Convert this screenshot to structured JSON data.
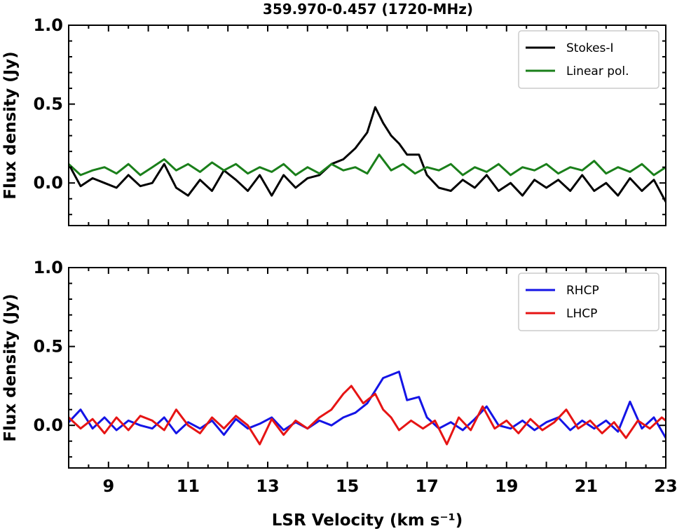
{
  "title": "359.970-0.457 (1720-MHz)",
  "chart_data": [
    {
      "type": "line",
      "ylabel": "Flux density (Jy)",
      "xlim": [
        8,
        23
      ],
      "ylim": [
        -0.27,
        1.0
      ],
      "yticks": [
        0.0,
        0.5,
        1.0
      ],
      "ytick_labels": [
        "0.0",
        "0.5",
        "1.0"
      ],
      "legend_position": "top-right",
      "series": [
        {
          "name": "Stokes-I",
          "color": "#000000",
          "points": [
            [
              8.0,
              0.12
            ],
            [
              8.3,
              -0.02
            ],
            [
              8.6,
              0.03
            ],
            [
              8.9,
              0.0
            ],
            [
              9.2,
              -0.03
            ],
            [
              9.5,
              0.05
            ],
            [
              9.8,
              -0.02
            ],
            [
              10.1,
              0.0
            ],
            [
              10.4,
              0.12
            ],
            [
              10.7,
              -0.03
            ],
            [
              11.0,
              -0.08
            ],
            [
              11.3,
              0.02
            ],
            [
              11.6,
              -0.05
            ],
            [
              11.9,
              0.08
            ],
            [
              12.2,
              0.02
            ],
            [
              12.5,
              -0.05
            ],
            [
              12.8,
              0.05
            ],
            [
              13.1,
              -0.08
            ],
            [
              13.4,
              0.05
            ],
            [
              13.7,
              -0.03
            ],
            [
              14.0,
              0.03
            ],
            [
              14.3,
              0.05
            ],
            [
              14.6,
              0.12
            ],
            [
              14.9,
              0.15
            ],
            [
              15.2,
              0.22
            ],
            [
              15.5,
              0.32
            ],
            [
              15.7,
              0.48
            ],
            [
              15.9,
              0.38
            ],
            [
              16.1,
              0.3
            ],
            [
              16.3,
              0.25
            ],
            [
              16.5,
              0.18
            ],
            [
              16.8,
              0.18
            ],
            [
              17.0,
              0.05
            ],
            [
              17.3,
              -0.03
            ],
            [
              17.6,
              -0.05
            ],
            [
              17.9,
              0.02
            ],
            [
              18.2,
              -0.03
            ],
            [
              18.5,
              0.05
            ],
            [
              18.8,
              -0.05
            ],
            [
              19.1,
              0.0
            ],
            [
              19.4,
              -0.08
            ],
            [
              19.7,
              0.02
            ],
            [
              20.0,
              -0.03
            ],
            [
              20.3,
              0.02
            ],
            [
              20.6,
              -0.05
            ],
            [
              20.9,
              0.05
            ],
            [
              21.2,
              -0.05
            ],
            [
              21.5,
              0.0
            ],
            [
              21.8,
              -0.08
            ],
            [
              22.1,
              0.03
            ],
            [
              22.4,
              -0.05
            ],
            [
              22.7,
              0.02
            ],
            [
              23.0,
              -0.12
            ]
          ]
        },
        {
          "name": "Linear pol.",
          "color": "#1a7f1a",
          "points": [
            [
              8.0,
              0.12
            ],
            [
              8.3,
              0.05
            ],
            [
              8.6,
              0.08
            ],
            [
              8.9,
              0.1
            ],
            [
              9.2,
              0.06
            ],
            [
              9.5,
              0.12
            ],
            [
              9.8,
              0.05
            ],
            [
              10.1,
              0.1
            ],
            [
              10.4,
              0.15
            ],
            [
              10.7,
              0.08
            ],
            [
              11.0,
              0.12
            ],
            [
              11.3,
              0.07
            ],
            [
              11.6,
              0.13
            ],
            [
              11.9,
              0.08
            ],
            [
              12.2,
              0.12
            ],
            [
              12.5,
              0.06
            ],
            [
              12.8,
              0.1
            ],
            [
              13.1,
              0.07
            ],
            [
              13.4,
              0.12
            ],
            [
              13.7,
              0.05
            ],
            [
              14.0,
              0.1
            ],
            [
              14.3,
              0.06
            ],
            [
              14.6,
              0.12
            ],
            [
              14.9,
              0.08
            ],
            [
              15.2,
              0.1
            ],
            [
              15.5,
              0.06
            ],
            [
              15.8,
              0.18
            ],
            [
              16.1,
              0.08
            ],
            [
              16.4,
              0.12
            ],
            [
              16.7,
              0.06
            ],
            [
              17.0,
              0.1
            ],
            [
              17.3,
              0.08
            ],
            [
              17.6,
              0.12
            ],
            [
              17.9,
              0.05
            ],
            [
              18.2,
              0.1
            ],
            [
              18.5,
              0.07
            ],
            [
              18.8,
              0.12
            ],
            [
              19.1,
              0.05
            ],
            [
              19.4,
              0.1
            ],
            [
              19.7,
              0.08
            ],
            [
              20.0,
              0.12
            ],
            [
              20.3,
              0.06
            ],
            [
              20.6,
              0.1
            ],
            [
              20.9,
              0.08
            ],
            [
              21.2,
              0.14
            ],
            [
              21.5,
              0.06
            ],
            [
              21.8,
              0.1
            ],
            [
              22.1,
              0.07
            ],
            [
              22.4,
              0.12
            ],
            [
              22.7,
              0.05
            ],
            [
              23.0,
              0.1
            ]
          ]
        }
      ]
    },
    {
      "type": "line",
      "ylabel": "Flux density (Jy)",
      "xlabel": "LSR Velocity (km s⁻¹)",
      "xlim": [
        8,
        23
      ],
      "ylim": [
        -0.27,
        1.0
      ],
      "xticks": [
        9,
        11,
        13,
        15,
        17,
        19,
        21,
        23
      ],
      "xtick_labels": [
        "9",
        "11",
        "13",
        "15",
        "17",
        "19",
        "21",
        "23"
      ],
      "yticks": [
        0.0,
        0.5,
        1.0
      ],
      "ytick_labels": [
        "0.0",
        "0.5",
        "1.0"
      ],
      "legend_position": "top-right",
      "series": [
        {
          "name": "RHCP",
          "color": "#1414e6",
          "points": [
            [
              8.0,
              0.02
            ],
            [
              8.3,
              0.1
            ],
            [
              8.6,
              -0.02
            ],
            [
              8.9,
              0.05
            ],
            [
              9.2,
              -0.03
            ],
            [
              9.5,
              0.03
            ],
            [
              9.8,
              0.0
            ],
            [
              10.1,
              -0.02
            ],
            [
              10.4,
              0.05
            ],
            [
              10.7,
              -0.05
            ],
            [
              11.0,
              0.02
            ],
            [
              11.3,
              -0.02
            ],
            [
              11.6,
              0.03
            ],
            [
              11.9,
              -0.06
            ],
            [
              12.2,
              0.04
            ],
            [
              12.5,
              -0.02
            ],
            [
              12.8,
              0.01
            ],
            [
              13.1,
              0.05
            ],
            [
              13.4,
              -0.03
            ],
            [
              13.7,
              0.02
            ],
            [
              14.0,
              -0.02
            ],
            [
              14.3,
              0.03
            ],
            [
              14.6,
              0.0
            ],
            [
              14.9,
              0.05
            ],
            [
              15.2,
              0.08
            ],
            [
              15.5,
              0.14
            ],
            [
              15.7,
              0.22
            ],
            [
              15.9,
              0.3
            ],
            [
              16.1,
              0.32
            ],
            [
              16.3,
              0.34
            ],
            [
              16.5,
              0.16
            ],
            [
              16.8,
              0.18
            ],
            [
              17.0,
              0.05
            ],
            [
              17.3,
              -0.02
            ],
            [
              17.6,
              0.02
            ],
            [
              17.9,
              -0.03
            ],
            [
              18.2,
              0.04
            ],
            [
              18.5,
              0.12
            ],
            [
              18.8,
              0.0
            ],
            [
              19.1,
              -0.02
            ],
            [
              19.4,
              0.03
            ],
            [
              19.7,
              -0.03
            ],
            [
              20.0,
              0.02
            ],
            [
              20.3,
              0.05
            ],
            [
              20.6,
              -0.03
            ],
            [
              20.9,
              0.03
            ],
            [
              21.2,
              -0.02
            ],
            [
              21.5,
              0.03
            ],
            [
              21.8,
              -0.04
            ],
            [
              22.1,
              0.15
            ],
            [
              22.4,
              -0.02
            ],
            [
              22.7,
              0.05
            ],
            [
              23.0,
              -0.08
            ]
          ]
        },
        {
          "name": "LHCP",
          "color": "#e61414",
          "points": [
            [
              8.0,
              0.05
            ],
            [
              8.3,
              -0.02
            ],
            [
              8.6,
              0.04
            ],
            [
              8.9,
              -0.05
            ],
            [
              9.2,
              0.05
            ],
            [
              9.5,
              -0.03
            ],
            [
              9.8,
              0.06
            ],
            [
              10.1,
              0.03
            ],
            [
              10.4,
              -0.03
            ],
            [
              10.7,
              0.1
            ],
            [
              11.0,
              0.0
            ],
            [
              11.3,
              -0.05
            ],
            [
              11.6,
              0.05
            ],
            [
              11.9,
              -0.02
            ],
            [
              12.2,
              0.06
            ],
            [
              12.5,
              0.0
            ],
            [
              12.8,
              -0.12
            ],
            [
              13.1,
              0.04
            ],
            [
              13.4,
              -0.06
            ],
            [
              13.7,
              0.03
            ],
            [
              14.0,
              -0.02
            ],
            [
              14.3,
              0.05
            ],
            [
              14.6,
              0.1
            ],
            [
              14.9,
              0.2
            ],
            [
              15.1,
              0.25
            ],
            [
              15.4,
              0.14
            ],
            [
              15.7,
              0.2
            ],
            [
              15.9,
              0.1
            ],
            [
              16.1,
              0.05
            ],
            [
              16.3,
              -0.03
            ],
            [
              16.6,
              0.03
            ],
            [
              16.9,
              -0.02
            ],
            [
              17.2,
              0.03
            ],
            [
              17.5,
              -0.12
            ],
            [
              17.8,
              0.05
            ],
            [
              18.1,
              -0.03
            ],
            [
              18.4,
              0.12
            ],
            [
              18.7,
              -0.02
            ],
            [
              19.0,
              0.03
            ],
            [
              19.3,
              -0.05
            ],
            [
              19.6,
              0.04
            ],
            [
              19.9,
              -0.03
            ],
            [
              20.2,
              0.02
            ],
            [
              20.5,
              0.1
            ],
            [
              20.8,
              -0.02
            ],
            [
              21.1,
              0.03
            ],
            [
              21.4,
              -0.05
            ],
            [
              21.7,
              0.02
            ],
            [
              22.0,
              -0.08
            ],
            [
              22.3,
              0.03
            ],
            [
              22.6,
              -0.02
            ],
            [
              22.9,
              0.05
            ],
            [
              23.0,
              0.03
            ]
          ]
        }
      ]
    }
  ]
}
